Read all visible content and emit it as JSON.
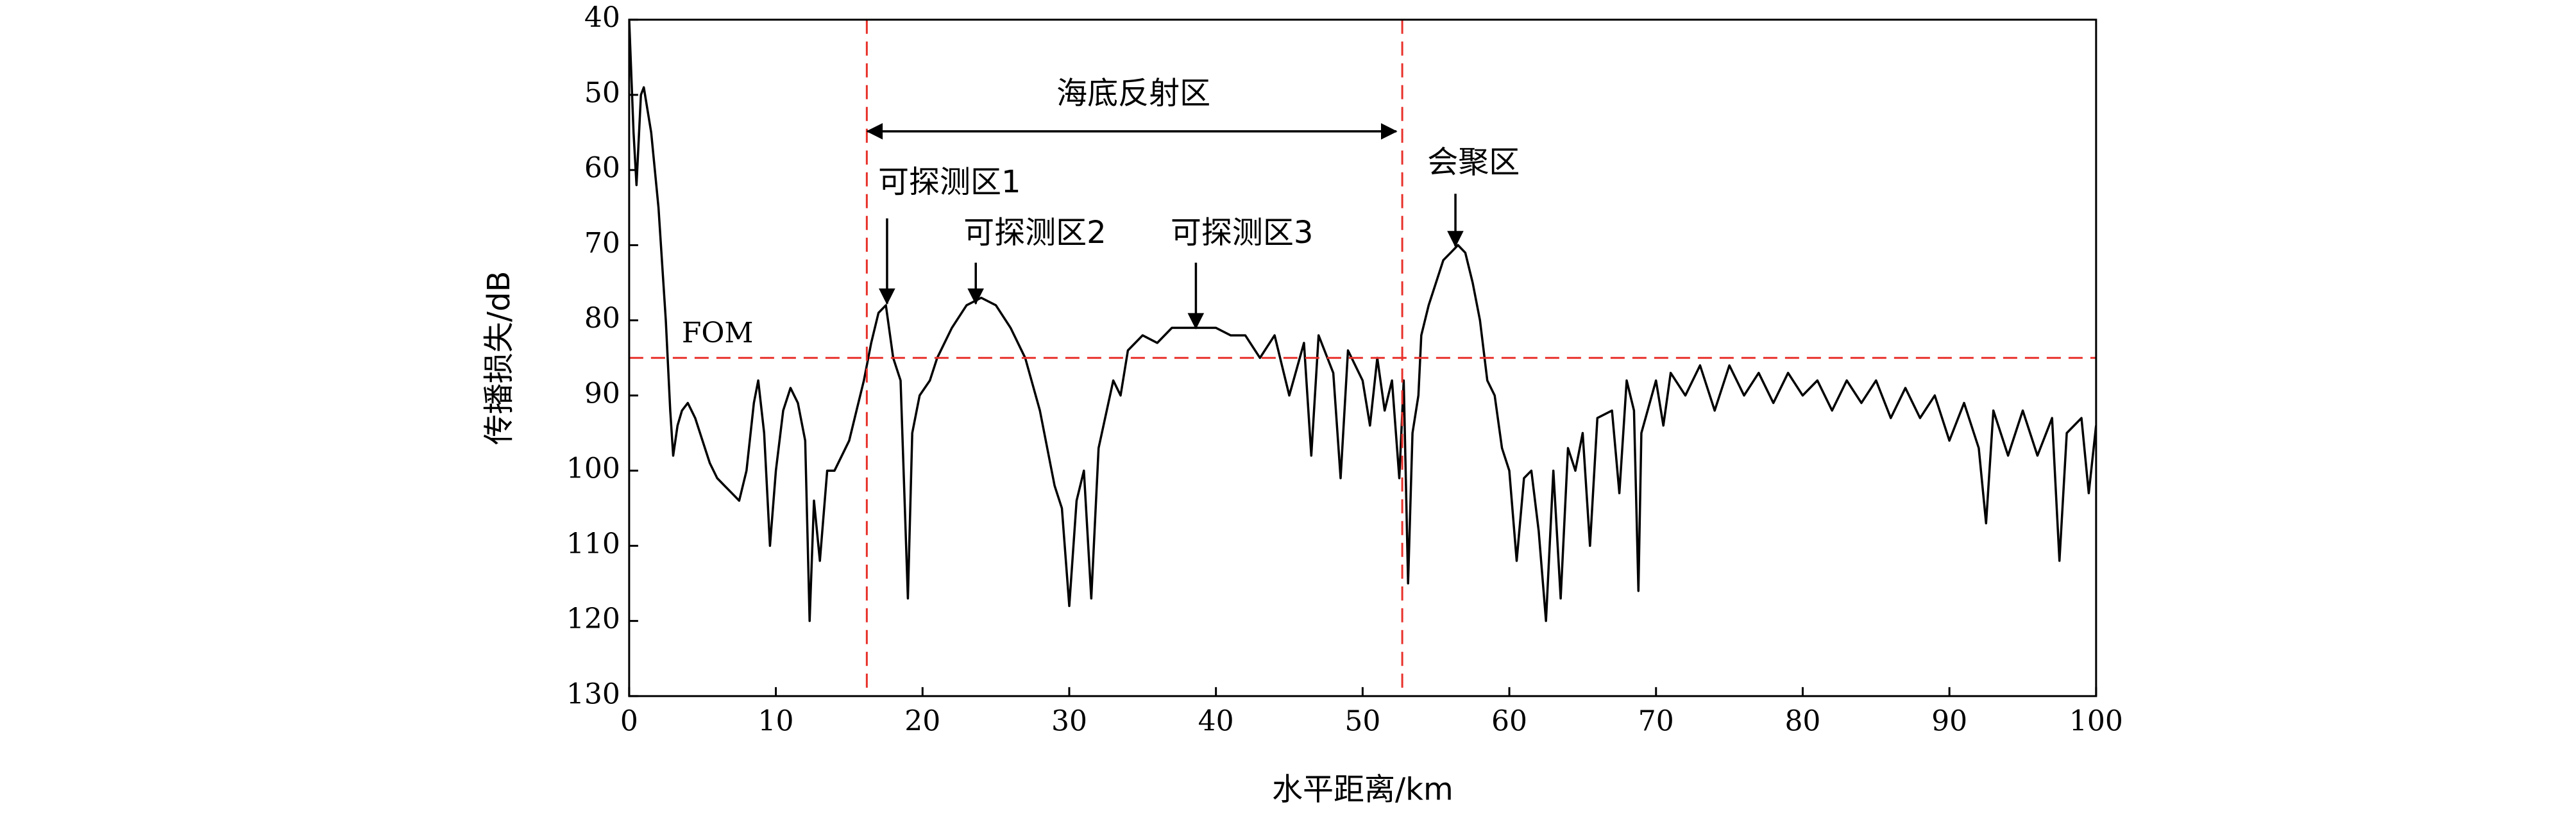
{
  "chart_data": {
    "type": "line",
    "xlabel": "水平距离/km",
    "ylabel": "传播损失/dB",
    "xlim": [
      0,
      100
    ],
    "ylim": [
      130,
      40
    ],
    "inverted_y": true,
    "xticks": [
      0,
      10,
      20,
      30,
      40,
      50,
      60,
      70,
      80,
      90,
      100
    ],
    "yticks": [
      40,
      50,
      60,
      70,
      80,
      90,
      100,
      110,
      120,
      130
    ],
    "series": [
      {
        "color": "#000000",
        "x": [
          0,
          0.3,
          0.5,
          0.8,
          1.0,
          1.5,
          2.0,
          2.5,
          2.8,
          3.0,
          3.3,
          3.6,
          4,
          4.5,
          5,
          5.5,
          6,
          6.5,
          7,
          7.5,
          8,
          8.5,
          8.8,
          9.2,
          9.6,
          10,
          10.5,
          11,
          11.5,
          12,
          12.3,
          12.6,
          13,
          13.5,
          14,
          14.5,
          15,
          15.5,
          16,
          16.5,
          17,
          17.5,
          18,
          18.5,
          19,
          19.3,
          19.8,
          20.5,
          21,
          22,
          23,
          24,
          25,
          26,
          27,
          28,
          29,
          29.5,
          30,
          30.5,
          31,
          31.5,
          32,
          33,
          33.5,
          34,
          35,
          36,
          37,
          38,
          39,
          40,
          41,
          42,
          43,
          44,
          45,
          46,
          46.5,
          47,
          48,
          48.5,
          49,
          50,
          50.5,
          51,
          51.5,
          52,
          52.5,
          52.8,
          53.1,
          53.4,
          53.8,
          54,
          54.5,
          55,
          55.5,
          56,
          56.5,
          57,
          57.5,
          58,
          58.5,
          59,
          59.5,
          60,
          60.5,
          61,
          61.5,
          62,
          62.5,
          63,
          63.5,
          64,
          64.5,
          65,
          65.5,
          66,
          67,
          67.5,
          68,
          68.5,
          68.8,
          69,
          70,
          70.5,
          71,
          72,
          73,
          74,
          75,
          76,
          77,
          78,
          79,
          80,
          81,
          82,
          83,
          84,
          85,
          86,
          87,
          88,
          89,
          90,
          91,
          92,
          92.5,
          93,
          94,
          95,
          96,
          97,
          97.5,
          98,
          99,
          99.5,
          100
        ],
        "values": [
          40,
          55,
          62,
          50,
          49,
          55,
          65,
          80,
          92,
          98,
          94,
          92,
          91,
          93,
          96,
          99,
          101,
          102,
          103,
          104,
          100,
          91,
          88,
          95,
          110,
          100,
          92,
          89,
          91,
          96,
          120,
          104,
          112,
          100,
          100,
          98,
          96,
          92,
          88,
          83,
          79,
          78,
          85,
          88,
          117,
          95,
          90,
          88,
          85,
          81,
          78,
          77,
          78,
          81,
          85,
          92,
          102,
          105,
          118,
          104,
          100,
          117,
          97,
          88,
          90,
          84,
          82,
          83,
          81,
          81,
          81,
          81,
          82,
          82,
          85,
          82,
          90,
          83,
          98,
          82,
          87,
          101,
          84,
          88,
          94,
          85,
          92,
          88,
          101,
          88,
          115,
          95,
          90,
          82,
          78,
          75,
          72,
          71,
          70,
          71,
          75,
          80,
          88,
          90,
          97,
          100,
          112,
          101,
          100,
          108,
          120,
          100,
          117,
          97,
          100,
          95,
          110,
          93,
          92,
          103,
          88,
          92,
          116,
          95,
          88,
          94,
          87,
          90,
          86,
          92,
          86,
          90,
          87,
          91,
          87,
          90,
          88,
          92,
          88,
          91,
          88,
          93,
          89,
          93,
          90,
          96,
          91,
          97,
          107,
          92,
          98,
          92,
          98,
          93,
          112,
          95,
          93,
          103,
          94
        ]
      }
    ],
    "reference_lines": [
      {
        "axis": "y",
        "value": 85,
        "label": "FOM"
      },
      {
        "axis": "x",
        "value": 16.2
      },
      {
        "axis": "x",
        "value": 52.7
      }
    ],
    "reference_color": "#e8302a",
    "annotations": [
      {
        "text": "海底反射区"
      },
      {
        "text": "可探测区1"
      },
      {
        "text": "可探测区2"
      },
      {
        "text": "可探测区3"
      },
      {
        "text": "会聚区"
      }
    ]
  }
}
